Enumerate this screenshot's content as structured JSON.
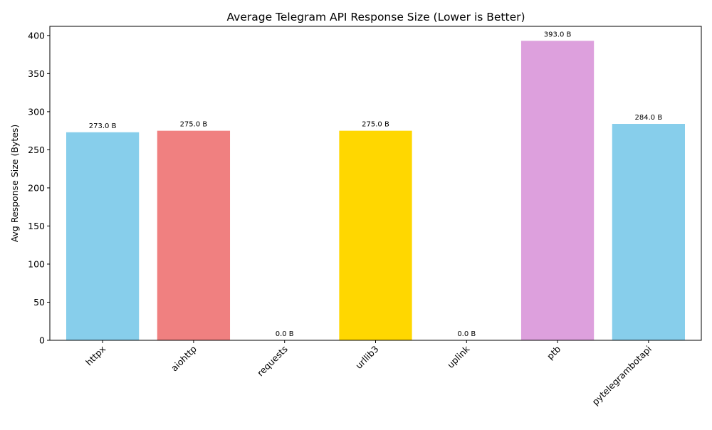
{
  "chart_data": {
    "type": "bar",
    "title": "Average Telegram API Response Size (Lower is Better)",
    "xlabel": "",
    "ylabel": "Avg Response Size (Bytes)",
    "ylim": [
      0,
      412
    ],
    "yticks": [
      0,
      50,
      100,
      150,
      200,
      250,
      300,
      350,
      400
    ],
    "grid": false,
    "legend": "none",
    "categories": [
      "httpx",
      "aiohttp",
      "requests",
      "urllib3",
      "uplink",
      "ptb",
      "pytelegrambotapi"
    ],
    "values": [
      273.0,
      275.0,
      0.0,
      275.0,
      0.0,
      393.0,
      284.0
    ],
    "data_labels": [
      "273.0 B",
      "275.0 B",
      "0.0 B",
      "275.0 B",
      "0.0 B",
      "393.0 B",
      "284.0 B"
    ],
    "colors": [
      "#87CEEB",
      "#F08080",
      "#90EE90",
      "#FFD700",
      "#FFA500",
      "#DDA0DD",
      "#87CEEB"
    ]
  }
}
